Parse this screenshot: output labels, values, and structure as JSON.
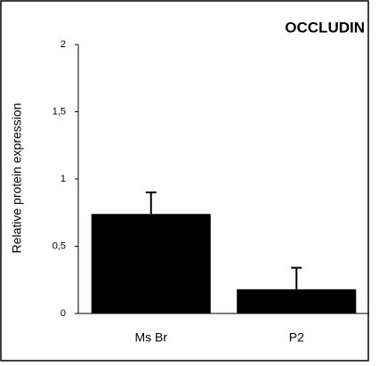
{
  "chart_data": {
    "type": "bar",
    "title": "OCCLUDIN",
    "y_label": "Relative protein expression",
    "categories": [
      "Ms Br",
      "P2"
    ],
    "values": [
      0.74,
      0.18
    ],
    "errors": [
      0.16,
      0.16
    ],
    "color": "#000000",
    "ylim": [
      0,
      2
    ],
    "yticks": [
      0,
      {
        "value": 0.5,
        "label": "0,5"
      },
      1,
      {
        "value": 1.5,
        "label": "1,5"
      },
      2
    ],
    "grid": false
  }
}
